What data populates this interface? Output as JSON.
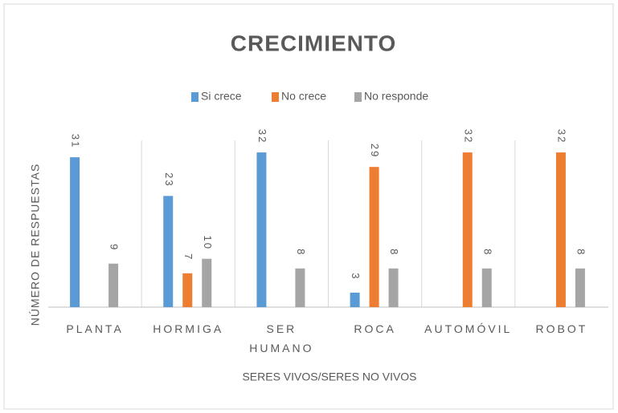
{
  "chart_data": {
    "type": "bar",
    "title": "CRECIMIENTO",
    "categories": [
      "PLANTA",
      "HORMIGA",
      "SER HUMANO",
      "ROCA",
      "AUTOMÓVIL",
      "ROBOT"
    ],
    "series": [
      {
        "name": "Si crece",
        "color": "#5b9bd5",
        "values": [
          31,
          23,
          32,
          3,
          null,
          null
        ]
      },
      {
        "name": "No crece",
        "color": "#ed7d31",
        "values": [
          null,
          7,
          null,
          29,
          32,
          32
        ]
      },
      {
        "name": "No responde",
        "color": "#a5a5a5",
        "values": [
          9,
          10,
          8,
          8,
          8,
          8
        ]
      }
    ],
    "ylim": [
      0,
      35
    ],
    "y_label": "NÚMERO DE RESPUESTAS",
    "x_label": "SERES VIVOS/SERES NO VIVOS",
    "legend": "top"
  }
}
